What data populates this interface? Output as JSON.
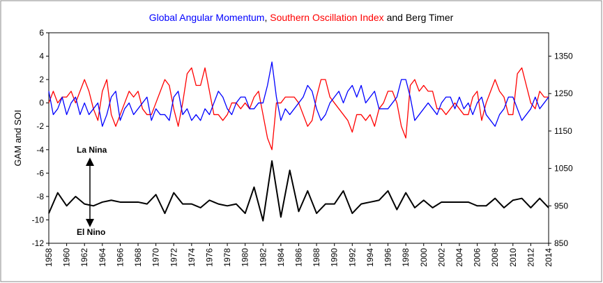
{
  "chart_data": {
    "type": "line",
    "title_parts": [
      {
        "text": "Global Angular Momentum",
        "color": "#0000ff"
      },
      {
        "text": ", ",
        "color": "#000000"
      },
      {
        "text": "Southern Oscillation Index",
        "color": "#ff0000"
      },
      {
        "text": " and Berg Timer",
        "color": "#000000"
      }
    ],
    "y_label": "GAM and SOI",
    "annotations": [
      "La Nina",
      "El Nino"
    ],
    "x": [
      1958,
      1958.5,
      1959,
      1959.5,
      1960,
      1960.5,
      1961,
      1961.5,
      1962,
      1962.5,
      1963,
      1963.5,
      1964,
      1964.5,
      1965,
      1965.5,
      1966,
      1966.5,
      1967,
      1967.5,
      1968,
      1968.5,
      1969,
      1969.5,
      1970,
      1970.5,
      1971,
      1971.5,
      1972,
      1972.5,
      1973,
      1973.5,
      1974,
      1974.5,
      1975,
      1975.5,
      1976,
      1976.5,
      1977,
      1977.5,
      1978,
      1978.5,
      1979,
      1979.5,
      1980,
      1980.5,
      1981,
      1981.5,
      1982,
      1982.5,
      1983,
      1983.5,
      1984,
      1984.5,
      1985,
      1985.5,
      1986,
      1986.5,
      1987,
      1987.5,
      1988,
      1988.5,
      1989,
      1989.5,
      1990,
      1990.5,
      1991,
      1991.5,
      1992,
      1992.5,
      1993,
      1993.5,
      1994,
      1994.5,
      1995,
      1995.5,
      1996,
      1996.5,
      1997,
      1997.5,
      1998,
      1998.5,
      1999,
      1999.5,
      2000,
      2000.5,
      2001,
      2001.5,
      2002,
      2002.5,
      2003,
      2003.5,
      2004,
      2004.5,
      2005,
      2005.5,
      2006,
      2006.5,
      2007,
      2007.5,
      2008,
      2008.5,
      2009,
      2009.5,
      2010,
      2010.5,
      2011,
      2011.5,
      2012,
      2012.5,
      2013,
      2013.5,
      2014
    ],
    "series": [
      {
        "name": "Southern Oscillation Index",
        "color": "#ff0000",
        "axis": "y",
        "values": [
          0,
          1,
          0,
          0.5,
          0.5,
          1,
          0,
          1,
          2,
          1,
          -0.5,
          -1.5,
          1,
          2,
          -1,
          -2,
          -1,
          0,
          1,
          0.5,
          1,
          -0.5,
          -1,
          -1,
          0,
          1,
          2,
          1.5,
          -0.5,
          -2,
          0,
          2.5,
          3,
          1.5,
          1.5,
          3,
          1,
          -1,
          -1,
          -1.5,
          -1,
          0,
          0,
          -0.5,
          0,
          -0.5,
          0.5,
          1,
          -1,
          -3,
          -4,
          0,
          0,
          0.5,
          0.5,
          0.5,
          0,
          -1,
          -2,
          -1.5,
          0.5,
          2,
          2,
          0.5,
          0,
          -0.5,
          -1,
          -1.5,
          -2.5,
          -1,
          -1,
          -1.5,
          -1,
          -2,
          -0.5,
          0,
          1,
          1,
          0,
          -2,
          -3,
          1.5,
          2,
          1,
          1.5,
          1,
          1,
          -0.5,
          -0.5,
          -1,
          -0.5,
          0,
          -0.5,
          -1,
          -1,
          0.5,
          1,
          -1.5,
          0,
          1,
          2,
          1,
          0.5,
          -1,
          -1,
          2.5,
          3,
          1.5,
          0,
          -0.5,
          1,
          0.5,
          0.5
        ]
      },
      {
        "name": "Global Angular Momentum",
        "color": "#0000ff",
        "axis": "y",
        "values": [
          1,
          -1,
          -0.5,
          0.5,
          -1,
          0,
          0.5,
          -1,
          0,
          -1,
          -0.5,
          0,
          -2,
          -1,
          0.5,
          1,
          -1.5,
          -0.5,
          0,
          -1,
          -0.5,
          0,
          0.5,
          -1.5,
          -0.5,
          -1,
          -1,
          -1.5,
          0.5,
          1,
          -1,
          -0.5,
          -1.5,
          -1,
          -1.5,
          -0.5,
          -1,
          0,
          1,
          0.5,
          -0.5,
          -1,
          0,
          0.5,
          0.5,
          -0.5,
          -0.5,
          0,
          0,
          1.5,
          3.5,
          0.5,
          -1.5,
          -0.5,
          -1,
          -0.5,
          0,
          0.5,
          1.5,
          1,
          -0.5,
          -1.5,
          -1,
          0,
          0.5,
          1,
          0,
          1,
          1.5,
          0.5,
          1.5,
          0,
          0.5,
          1,
          -0.5,
          -0.5,
          -0.5,
          0,
          0.5,
          2,
          2,
          0.5,
          -1.5,
          -1,
          -0.5,
          0,
          -0.5,
          -1,
          0,
          0.5,
          0.5,
          -0.5,
          0.5,
          -0.5,
          0,
          -1,
          0,
          0.5,
          -1,
          -1.5,
          -2,
          -1,
          -0.5,
          0.5,
          0.5,
          -0.5,
          -1.5,
          -1,
          -0.5,
          0.5,
          -0.5,
          0,
          0.5
        ]
      },
      {
        "name": "Berg Timer",
        "color": "#000000",
        "axis": "y2",
        "values": [
          930,
          957.5,
          985,
          967.5,
          950,
          962.5,
          975,
          965,
          955,
          952.5,
          950,
          955,
          960,
          962.5,
          965,
          962.5,
          960,
          960,
          960,
          960,
          960,
          957.5,
          955,
          967.5,
          980,
          955,
          930,
          957.5,
          985,
          970,
          955,
          955,
          955,
          950,
          945,
          955,
          965,
          960,
          955,
          952.5,
          950,
          952.5,
          955,
          942.5,
          930,
          965,
          1000,
          955,
          910,
          990,
          1070,
          995,
          920,
          982.5,
          1045,
          990,
          935,
          962.5,
          990,
          960,
          930,
          942.5,
          955,
          955,
          955,
          972.5,
          990,
          960,
          930,
          942.5,
          955,
          957.5,
          960,
          962.5,
          965,
          977.5,
          990,
          965,
          940,
          962.5,
          985,
          965,
          945,
          955,
          965,
          955,
          945,
          952.5,
          960,
          960,
          960,
          960,
          960,
          960,
          960,
          955,
          950,
          950,
          950,
          960,
          970,
          957.5,
          945,
          955,
          965,
          967.5,
          970,
          957.5,
          945,
          957.5,
          970,
          957.5,
          945
        ]
      }
    ],
    "xlim": [
      1958,
      2014
    ],
    "xticks": [
      1958,
      1960,
      1962,
      1964,
      1966,
      1968,
      1970,
      1972,
      1974,
      1976,
      1978,
      1980,
      1982,
      1984,
      1986,
      1988,
      1990,
      1992,
      1994,
      1996,
      1998,
      2000,
      2002,
      2004,
      2006,
      2008,
      2010,
      2012,
      2014
    ],
    "ylim": [
      -12,
      6
    ],
    "yticks": [
      -12,
      -10,
      -8,
      -6,
      -4,
      -2,
      0,
      2,
      4,
      6
    ],
    "y2lim": [
      850,
      1412.5
    ],
    "y2ticks": [
      850,
      950,
      1050,
      1150,
      1250,
      1350
    ],
    "grid": false
  }
}
